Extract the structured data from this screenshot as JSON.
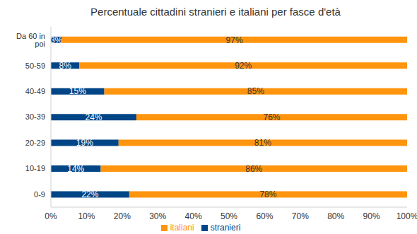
{
  "chart_data": {
    "type": "bar",
    "title": "Percentuale cittadini stranieri e italiani per fasce d'età",
    "orientation": "horizontal",
    "stacked": true,
    "data_labels": true,
    "grid": false,
    "legend": "bottom",
    "categories": [
      "Da 60 in poi",
      "50-59",
      "40-49",
      "30-39",
      "20-29",
      "10-19",
      "0-9"
    ],
    "series": [
      {
        "name": "stranieri",
        "color": "#004586",
        "values": [
          3,
          8,
          15,
          24,
          19,
          14,
          22
        ],
        "value_labels": [
          "3%",
          "8%",
          "15%",
          "24%",
          "19%",
          "14%",
          "22%"
        ]
      },
      {
        "name": "italiani",
        "color": "#ff950e",
        "values": [
          97,
          92,
          85,
          76,
          81,
          86,
          78
        ],
        "value_labels": [
          "97%",
          "92%",
          "85%",
          "76%",
          "81%",
          "86%",
          "78%"
        ]
      }
    ],
    "xlim": [
      0,
      100
    ],
    "xticks": [
      {
        "value": 0,
        "label": "0%"
      },
      {
        "value": 10,
        "label": "10%"
      },
      {
        "value": 20,
        "label": "20%"
      },
      {
        "value": 30,
        "label": "30%"
      },
      {
        "value": 40,
        "label": "40%"
      },
      {
        "value": 50,
        "label": "50%"
      },
      {
        "value": 60,
        "label": "60%"
      },
      {
        "value": 70,
        "label": "70%"
      },
      {
        "value": 80,
        "label": "80%"
      },
      {
        "value": 90,
        "label": "90%"
      },
      {
        "value": 100,
        "label": "100%"
      }
    ]
  }
}
